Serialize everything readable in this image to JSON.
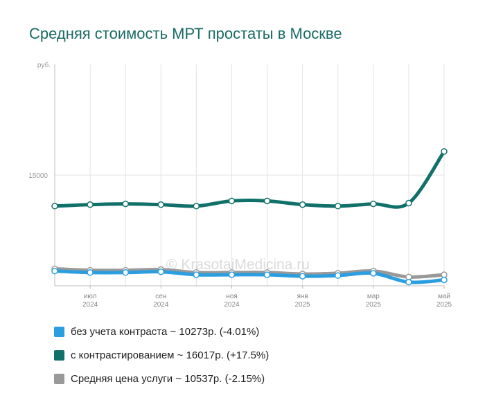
{
  "title": "Средняя стоимость МРТ простаты в Москве",
  "watermark": "© KrasotaiMedicina.ru",
  "chart_data": {
    "type": "line",
    "ylabel": "руб.",
    "y_ticks": [
      15000
    ],
    "ylim": [
      0,
      30000
    ],
    "grid": true,
    "x": [
      "2024-06",
      "2024-07",
      "2024-08",
      "2024-09",
      "2024-10",
      "2024-11",
      "2024-12",
      "2025-01",
      "2025-02",
      "2025-03",
      "2025-04",
      "2025-05"
    ],
    "x_tick_labels": [
      {
        "month": "июл",
        "year": "2024",
        "index": 1
      },
      {
        "month": "сен",
        "year": "2024",
        "index": 3
      },
      {
        "month": "ноя",
        "year": "2024",
        "index": 5
      },
      {
        "month": "янв",
        "year": "2025",
        "index": 7
      },
      {
        "month": "мар",
        "year": "2025",
        "index": 9
      },
      {
        "month": "май",
        "year": "2025",
        "index": 11
      }
    ],
    "series": [
      {
        "name": "без учета контраста ~ 10273р. (-4.01%)",
        "color": "#2b9ee0",
        "values": [
          2000,
          1800,
          1800,
          1900,
          1500,
          1500,
          1500,
          1300,
          1400,
          1700,
          500,
          800
        ]
      },
      {
        "name": "с контрастированием ~ 16017р. (+17.5%)",
        "color": "#11716a",
        "values": [
          10800,
          11000,
          11100,
          11000,
          10800,
          11500,
          11500,
          11000,
          10800,
          11100,
          11200,
          18200
        ]
      },
      {
        "name": "Средняя цена услуги ~ 10537р. (-2.15%)",
        "color": "#999999",
        "values": [
          2300,
          2100,
          2100,
          2200,
          1800,
          1800,
          1800,
          1600,
          1700,
          2000,
          1200,
          1500
        ]
      }
    ],
    "legend": "bottom-left"
  }
}
